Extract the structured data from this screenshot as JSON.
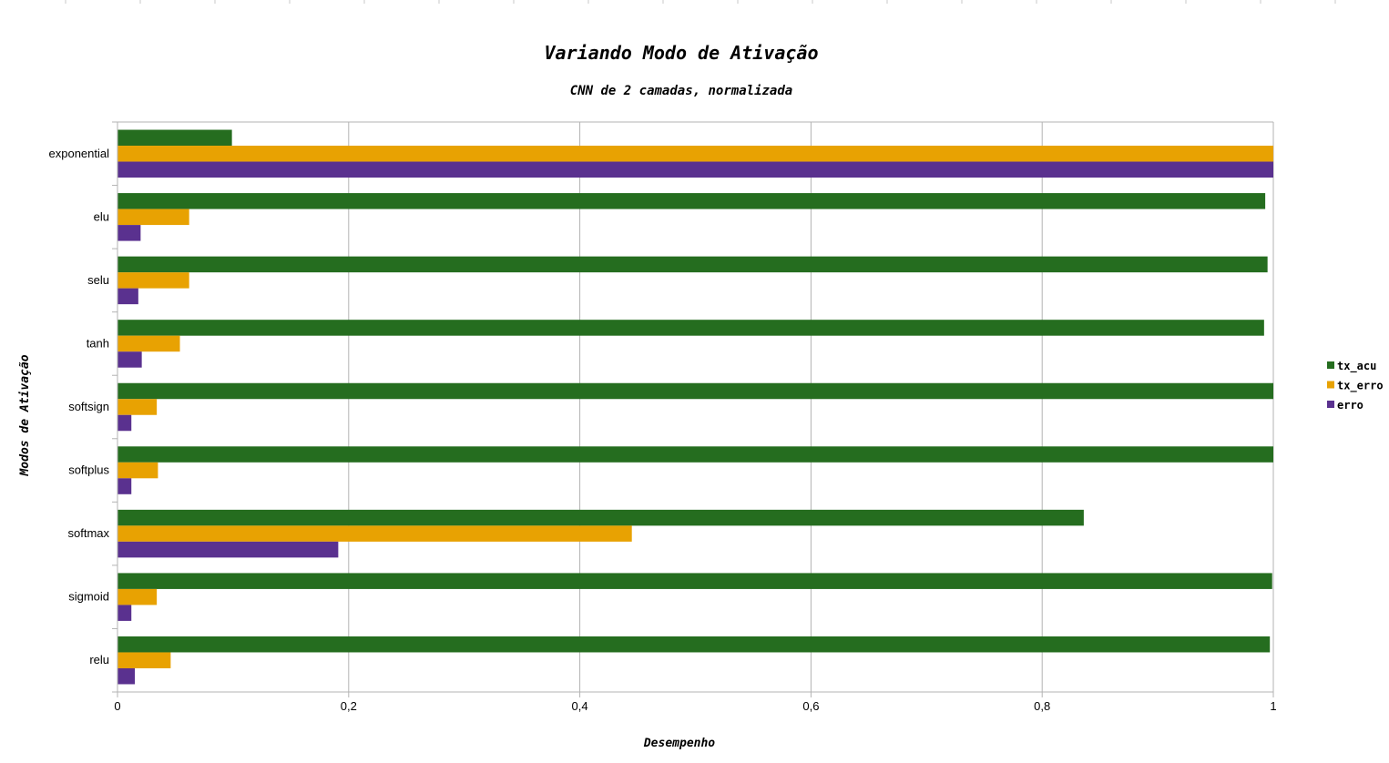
{
  "chart_data": {
    "type": "bar",
    "orientation": "horizontal",
    "title": "Variando Modo de Ativação",
    "subtitle": "CNN de 2 camadas, normalizada",
    "xlabel": "Desempenho",
    "ylabel": "Modos de Ativação",
    "xlim": [
      0,
      1
    ],
    "xticks": [
      "0",
      "0,2",
      "0,4",
      "0,6",
      "0,8",
      "1"
    ],
    "xtick_values": [
      0,
      0.2,
      0.4,
      0.6,
      0.8,
      1
    ],
    "grid": true,
    "legend_position": "right",
    "categories": [
      "exponential",
      "elu",
      "selu",
      "tanh",
      "softsign",
      "softplus",
      "softmax",
      "sigmoid",
      "relu"
    ],
    "series": [
      {
        "name": "tx_acu",
        "color": "#256d1f",
        "values": [
          0.099,
          0.993,
          0.995,
          0.992,
          1.0,
          1.0,
          0.836,
          0.999,
          0.997
        ]
      },
      {
        "name": "tx_erro",
        "color": "#e8a202",
        "values": [
          1.0,
          0.062,
          0.062,
          0.054,
          0.034,
          0.035,
          0.445,
          0.034,
          0.046
        ]
      },
      {
        "name": "erro",
        "color": "#5a318f",
        "values": [
          1.0,
          0.02,
          0.018,
          0.021,
          0.012,
          0.012,
          0.191,
          0.012,
          0.015
        ]
      }
    ]
  }
}
